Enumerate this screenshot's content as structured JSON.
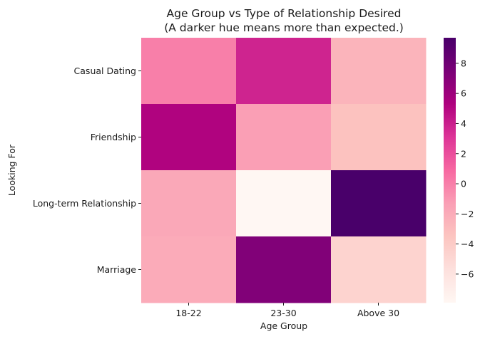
{
  "chart_data": {
    "type": "heatmap",
    "title": "Age Group vs Type of Relationship Desired",
    "subtitle": "(A darker hue means more than expected.)",
    "xlabel": "Age Group",
    "ylabel": "Looking For",
    "x_categories": [
      "18-22",
      "23-30",
      "Above 30"
    ],
    "y_categories": [
      "Casual Dating",
      "Friendship",
      "Long-term Relationship",
      "Marriage"
    ],
    "values": [
      [
        0.0,
        3.8,
        -2.5
      ],
      [
        5.2,
        -1.3,
        -3.3
      ],
      [
        -1.8,
        -7.9,
        9.7
      ],
      [
        -2.0,
        7.2,
        -4.6
      ]
    ],
    "colorbar": {
      "vmin": -7.9,
      "vmax": 9.7,
      "ticks": [
        -6,
        -4,
        -2,
        0,
        2,
        4,
        6,
        8
      ],
      "colormap": "RdPu",
      "colors": [
        "#fff7f3",
        "#fde0dd",
        "#fcc5c0",
        "#fa9fb5",
        "#f768a1",
        "#dd3497",
        "#ae017e",
        "#7a0177",
        "#49006a"
      ]
    }
  }
}
